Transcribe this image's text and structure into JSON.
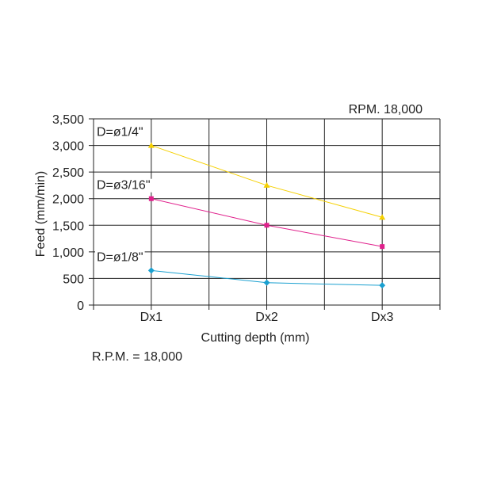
{
  "chart_data": {
    "type": "line",
    "subtitle": "RPM. 18,000",
    "xlabel": "Cutting depth (mm)",
    "ylabel": "Feed (mm/min)",
    "categories": [
      "Dx1",
      "Dx2",
      "Dx3"
    ],
    "ylim": [
      0,
      3500
    ],
    "yticks": [
      "0",
      "500",
      "1,000",
      "1,500",
      "2,000",
      "2,500",
      "3,000",
      "3,500"
    ],
    "grid": true,
    "legend": "none",
    "series": [
      {
        "name": "D=ø1/4\"",
        "color": "#f5d000",
        "marker": "triangle",
        "values": [
          3000,
          2250,
          1650
        ]
      },
      {
        "name": "D=ø3/16\"",
        "color": "#e0208c",
        "marker": "square",
        "values": [
          2000,
          1500,
          1100
        ]
      },
      {
        "name": "D=ø1/8\"",
        "color": "#1aa0d0",
        "marker": "diamond",
        "values": [
          650,
          420,
          370
        ]
      }
    ],
    "footnote": "R.P.M. = 18,000"
  }
}
